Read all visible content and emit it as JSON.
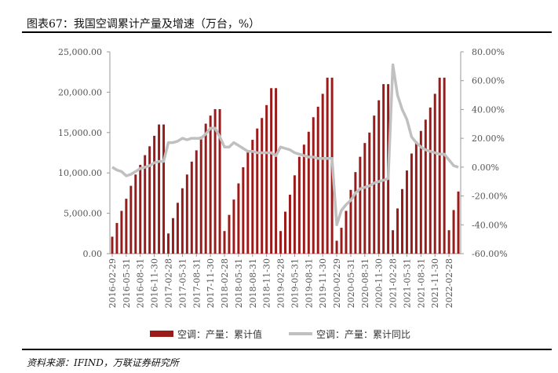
{
  "title": "图表67：我国空调累计产量及增速（万台，%）",
  "source": "资料来源：IFIND，万联证券研究所",
  "colors": {
    "bar": "#9b1b1b",
    "line": "#c0c0c0",
    "axis": "#999999",
    "text": "#555555"
  },
  "chart_data": {
    "type": "bar",
    "y_left": {
      "ticks": [
        "0.00",
        "5,000.00",
        "10,000.00",
        "15,000.00",
        "20,000.00",
        "25,000.00"
      ],
      "lim": [
        0,
        25000
      ]
    },
    "y_right": {
      "ticks": [
        "-60.00%",
        "-40.00%",
        "-20.00%",
        "0.00%",
        "20.00%",
        "40.00%",
        "60.00%",
        "80.00%"
      ],
      "lim": [
        -60,
        80
      ]
    },
    "x_ticks": [
      {
        "i": 0,
        "label": "2016-02-29"
      },
      {
        "i": 3,
        "label": "2016-05-31"
      },
      {
        "i": 6,
        "label": "2016-08-31"
      },
      {
        "i": 9,
        "label": "2016-11-30"
      },
      {
        "i": 12,
        "label": "2017-02-28"
      },
      {
        "i": 15,
        "label": "2017-05-31"
      },
      {
        "i": 18,
        "label": "2017-08-31"
      },
      {
        "i": 21,
        "label": "2017-11-30"
      },
      {
        "i": 24,
        "label": "2018-02-28"
      },
      {
        "i": 27,
        "label": "2018-05-31"
      },
      {
        "i": 30,
        "label": "2018-08-31"
      },
      {
        "i": 33,
        "label": "2018-11-30"
      },
      {
        "i": 36,
        "label": "2019-02-28"
      },
      {
        "i": 39,
        "label": "2019-05-31"
      },
      {
        "i": 42,
        "label": "2019-08-31"
      },
      {
        "i": 45,
        "label": "2019-11-30"
      },
      {
        "i": 48,
        "label": "2020-02-29"
      },
      {
        "i": 51,
        "label": "2020-05-31"
      },
      {
        "i": 54,
        "label": "2020-08-31"
      },
      {
        "i": 57,
        "label": "2020-11-30"
      },
      {
        "i": 60,
        "label": "2021-02-28"
      },
      {
        "i": 63,
        "label": "2021-05-31"
      },
      {
        "i": 66,
        "label": "2021-08-31"
      },
      {
        "i": 69,
        "label": "2021-11-30"
      },
      {
        "i": 72,
        "label": "2022-02-28"
      }
    ],
    "series": [
      {
        "name": "空调：产量：累计值",
        "type": "bar",
        "axis": "left",
        "values": [
          2100,
          3800,
          5300,
          6800,
          8400,
          9800,
          11000,
          12200,
          13300,
          14600,
          16000,
          16000,
          2500,
          4400,
          6300,
          8100,
          9800,
          11400,
          12800,
          14500,
          16100,
          17100,
          17900,
          17900,
          2800,
          4800,
          6700,
          8700,
          10700,
          12700,
          14100,
          15500,
          16800,
          18400,
          20500,
          20500,
          2800,
          5200,
          7300,
          9700,
          12000,
          13500,
          15100,
          16900,
          18200,
          19800,
          21800,
          21800,
          1600,
          3200,
          5300,
          7900,
          10100,
          12000,
          13700,
          15000,
          17100,
          19000,
          21000,
          21000,
          2900,
          5600,
          8000,
          10300,
          12400,
          13900,
          15200,
          16600,
          18100,
          19800,
          21800,
          21800,
          2900,
          5400,
          7700
        ]
      },
      {
        "name": "空调：产量：累计同比",
        "type": "line",
        "axis": "right",
        "values": [
          0,
          -2,
          -3,
          -6,
          -5,
          -3,
          -1,
          0,
          1,
          3,
          4,
          4,
          17,
          17,
          18,
          20,
          19,
          20,
          20,
          20,
          23,
          27,
          27,
          21,
          14,
          14,
          17,
          15,
          13,
          11,
          11,
          10,
          10,
          10,
          10,
          8,
          14,
          13,
          12,
          10,
          9,
          8,
          7,
          7,
          6,
          6,
          6,
          6,
          -40,
          -30,
          -26,
          -23,
          -18,
          -15,
          -14,
          -13,
          -11,
          -10,
          -9,
          -8,
          71,
          50,
          40,
          33,
          21,
          17,
          14,
          12,
          11,
          10,
          9,
          9,
          5,
          1,
          0
        ]
      }
    ],
    "legend": "bottom-center",
    "grid": false
  }
}
